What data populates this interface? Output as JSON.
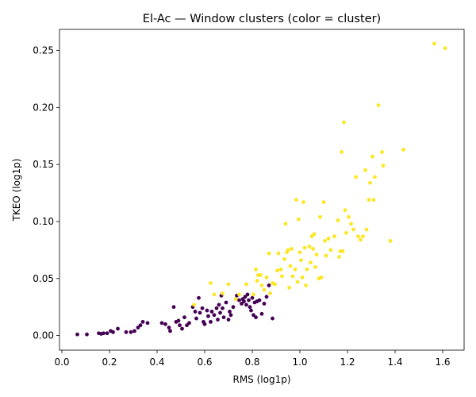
{
  "chart_data": {
    "type": "scatter",
    "title": "El-Ac — Window clusters (color = cluster)",
    "xlabel": "RMS (log1p)",
    "ylabel": "TKEO (log1p)",
    "xlim": [
      -0.01,
      1.69
    ],
    "ylim": [
      -0.0128,
      0.2685
    ],
    "xticks": [
      0.0,
      0.2,
      0.4,
      0.6,
      0.8,
      1.0,
      1.2,
      1.4,
      1.6
    ],
    "xtick_labels": [
      "0.0",
      "0.2",
      "0.4",
      "0.6",
      "0.8",
      "1.0",
      "1.2",
      "1.4",
      "1.6"
    ],
    "yticks": [
      0.0,
      0.05,
      0.1,
      0.15,
      0.2,
      0.25
    ],
    "ytick_labels": [
      "0.00",
      "0.05",
      "0.10",
      "0.15",
      "0.20",
      "0.25"
    ],
    "grid": false,
    "legend": "none",
    "series": [
      {
        "color": "#440154",
        "points": [
          [
            0.065,
            0.001
          ],
          [
            0.105,
            0.001
          ],
          [
            0.155,
            0.002
          ],
          [
            0.165,
            0.0015
          ],
          [
            0.175,
            0.002
          ],
          [
            0.19,
            0.002
          ],
          [
            0.205,
            0.004
          ],
          [
            0.215,
            0.003
          ],
          [
            0.235,
            0.006
          ],
          [
            0.27,
            0.003
          ],
          [
            0.29,
            0.003
          ],
          [
            0.305,
            0.004
          ],
          [
            0.32,
            0.007
          ],
          [
            0.33,
            0.009
          ],
          [
            0.34,
            0.012
          ],
          [
            0.36,
            0.011
          ],
          [
            0.42,
            0.011
          ],
          [
            0.435,
            0.01
          ],
          [
            0.45,
            0.007
          ],
          [
            0.455,
            0.004
          ],
          [
            0.47,
            0.025
          ],
          [
            0.48,
            0.012
          ],
          [
            0.49,
            0.013
          ],
          [
            0.495,
            0.009
          ],
          [
            0.505,
            0.006
          ],
          [
            0.515,
            0.016
          ],
          [
            0.525,
            0.009
          ],
          [
            0.535,
            0.011
          ],
          [
            0.55,
            0.025
          ],
          [
            0.56,
            0.021
          ],
          [
            0.565,
            0.015
          ],
          [
            0.575,
            0.033
          ],
          [
            0.58,
            0.02
          ],
          [
            0.59,
            0.024
          ],
          [
            0.595,
            0.012
          ],
          [
            0.6,
            0.01
          ],
          [
            0.61,
            0.022
          ],
          [
            0.615,
            0.017
          ],
          [
            0.625,
            0.012
          ],
          [
            0.63,
            0.021
          ],
          [
            0.64,
            0.018
          ],
          [
            0.65,
            0.024
          ],
          [
            0.655,
            0.014
          ],
          [
            0.66,
            0.027
          ],
          [
            0.665,
            0.02
          ],
          [
            0.67,
            0.035
          ],
          [
            0.675,
            0.024
          ],
          [
            0.68,
            0.016
          ],
          [
            0.69,
            0.029
          ],
          [
            0.7,
            0.014
          ],
          [
            0.705,
            0.021
          ],
          [
            0.71,
            0.018
          ],
          [
            0.72,
            0.025
          ],
          [
            0.735,
            0.035
          ],
          [
            0.745,
            0.031
          ],
          [
            0.755,
            0.028
          ],
          [
            0.76,
            0.032
          ],
          [
            0.765,
            0.03
          ],
          [
            0.77,
            0.034
          ],
          [
            0.775,
            0.027
          ],
          [
            0.78,
            0.036
          ],
          [
            0.785,
            0.031
          ],
          [
            0.79,
            0.025
          ],
          [
            0.795,
            0.022
          ],
          [
            0.8,
            0.033
          ],
          [
            0.805,
            0.018
          ],
          [
            0.81,
            0.029
          ],
          [
            0.815,
            0.016
          ],
          [
            0.82,
            0.03
          ],
          [
            0.83,
            0.031
          ],
          [
            0.84,
            0.019
          ],
          [
            0.85,
            0.028
          ],
          [
            0.86,
            0.034
          ],
          [
            0.87,
            0.044
          ],
          [
            0.885,
            0.015
          ]
        ]
      },
      {
        "color": "#fde725",
        "points": [
          [
            0.555,
            0.027
          ],
          [
            0.625,
            0.046
          ],
          [
            0.64,
            0.036
          ],
          [
            0.675,
            0.037
          ],
          [
            0.7,
            0.045
          ],
          [
            0.73,
            0.032
          ],
          [
            0.745,
            0.036
          ],
          [
            0.775,
            0.045
          ],
          [
            0.805,
            0.036
          ],
          [
            0.815,
            0.058
          ],
          [
            0.82,
            0.048
          ],
          [
            0.825,
            0.053
          ],
          [
            0.835,
            0.053
          ],
          [
            0.84,
            0.044
          ],
          [
            0.85,
            0.04
          ],
          [
            0.86,
            0.051
          ],
          [
            0.87,
            0.072
          ],
          [
            0.875,
            0.037
          ],
          [
            0.885,
            0.046
          ],
          [
            0.895,
            0.045
          ],
          [
            0.905,
            0.057
          ],
          [
            0.91,
            0.072
          ],
          [
            0.92,
            0.058
          ],
          [
            0.925,
            0.052
          ],
          [
            0.935,
            0.067
          ],
          [
            0.94,
            0.098
          ],
          [
            0.945,
            0.073
          ],
          [
            0.95,
            0.075
          ],
          [
            0.955,
            0.042
          ],
          [
            0.96,
            0.061
          ],
          [
            0.965,
            0.076
          ],
          [
            0.97,
            0.052
          ],
          [
            0.98,
            0.058
          ],
          [
            0.985,
            0.119
          ],
          [
            0.99,
            0.047
          ],
          [
            0.995,
            0.102
          ],
          [
            1.0,
            0.073
          ],
          [
            1.005,
            0.066
          ],
          [
            1.01,
            0.051
          ],
          [
            1.015,
            0.117
          ],
          [
            1.02,
            0.077
          ],
          [
            1.025,
            0.044
          ],
          [
            1.03,
            0.058
          ],
          [
            1.04,
            0.078
          ],
          [
            1.045,
            0.064
          ],
          [
            1.05,
            0.087
          ],
          [
            1.055,
            0.076
          ],
          [
            1.06,
            0.089
          ],
          [
            1.065,
            0.06
          ],
          [
            1.07,
            0.071
          ],
          [
            1.08,
            0.05
          ],
          [
            1.085,
            0.104
          ],
          [
            1.09,
            0.051
          ],
          [
            1.1,
            0.117
          ],
          [
            1.105,
            0.083
          ],
          [
            1.11,
            0.07
          ],
          [
            1.12,
            0.085
          ],
          [
            1.13,
            0.075
          ],
          [
            1.145,
            0.087
          ],
          [
            1.16,
            0.101
          ],
          [
            1.165,
            0.069
          ],
          [
            1.17,
            0.074
          ],
          [
            1.175,
            0.161
          ],
          [
            1.18,
            0.074
          ],
          [
            1.185,
            0.187
          ],
          [
            1.19,
            0.11
          ],
          [
            1.195,
            0.09
          ],
          [
            1.205,
            0.104
          ],
          [
            1.215,
            0.098
          ],
          [
            1.225,
            0.093
          ],
          [
            1.235,
            0.139
          ],
          [
            1.245,
            0.087
          ],
          [
            1.255,
            0.084
          ],
          [
            1.265,
            0.087
          ],
          [
            1.275,
            0.145
          ],
          [
            1.28,
            0.093
          ],
          [
            1.29,
            0.119
          ],
          [
            1.295,
            0.134
          ],
          [
            1.305,
            0.157
          ],
          [
            1.31,
            0.119
          ],
          [
            1.315,
            0.139
          ],
          [
            1.33,
            0.202
          ],
          [
            1.345,
            0.161
          ],
          [
            1.35,
            0.149
          ],
          [
            1.38,
            0.083
          ],
          [
            1.435,
            0.163
          ],
          [
            1.565,
            0.256
          ],
          [
            1.61,
            0.252
          ]
        ]
      }
    ]
  }
}
